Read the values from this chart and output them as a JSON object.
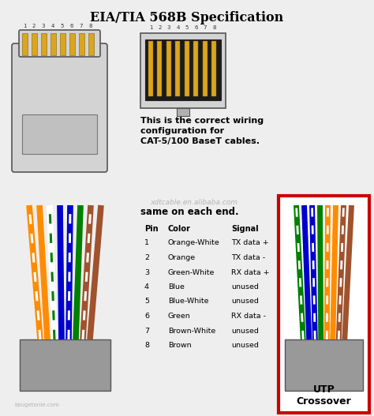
{
  "title": "EIA/TIA 568B Specification",
  "background_color": "#eeeeee",
  "text_color": "#000000",
  "title_fontsize": 11.5,
  "desc_text": "This is the correct wiring\nconfiguration for\nCAT-5/100 BaseT cables.",
  "desc2_text": "same on each end.",
  "watermark": "xdtcable.en.alibaba.com",
  "watermark2": "bougetonie.com",
  "pin_header": [
    "Pin",
    "Color",
    "Signal"
  ],
  "pins": [
    [
      "1",
      "Orange-White",
      "TX data +"
    ],
    [
      "2",
      "Orange",
      "TX data -"
    ],
    [
      "3",
      "Green-White",
      "RX data +"
    ],
    [
      "4",
      "Blue",
      "unused"
    ],
    [
      "5",
      "Blue-White",
      "unused"
    ],
    [
      "6",
      "Green",
      "RX data -"
    ],
    [
      "7",
      "Brown-White",
      "unused"
    ],
    [
      "8",
      "Brown",
      "unused"
    ]
  ],
  "wire_colors_left": [
    [
      "#FF8C00",
      "#FFFFFF"
    ],
    [
      "#FF8C00",
      "#FF8C00"
    ],
    [
      "#FFFFFF",
      "#008000"
    ],
    [
      "#0000CD",
      "#0000CD"
    ],
    [
      "#0000CD",
      "#FFFFFF"
    ],
    [
      "#008000",
      "#008000"
    ],
    [
      "#A0522D",
      "#FFFFFF"
    ],
    [
      "#A0522D",
      "#A0522D"
    ]
  ],
  "wire_colors_right": [
    [
      "#008000",
      "#FFFFFF"
    ],
    [
      "#0000CD",
      "#0000CD"
    ],
    [
      "#0000CD",
      "#FFFFFF"
    ],
    [
      "#008000",
      "#008000"
    ],
    [
      "#FF8C00",
      "#FFFFFF"
    ],
    [
      "#FF8C00",
      "#FF8C00"
    ],
    [
      "#A0522D",
      "#FFFFFF"
    ],
    [
      "#A0522D",
      "#A0522D"
    ]
  ],
  "utp_label": "UTP\nCrossover",
  "red_border_color": "#CC0000",
  "connector_color": "#d3d3d3",
  "gold_color": "#DAA520",
  "dark_color": "#1a1a1a",
  "jacket_color": "#999999"
}
